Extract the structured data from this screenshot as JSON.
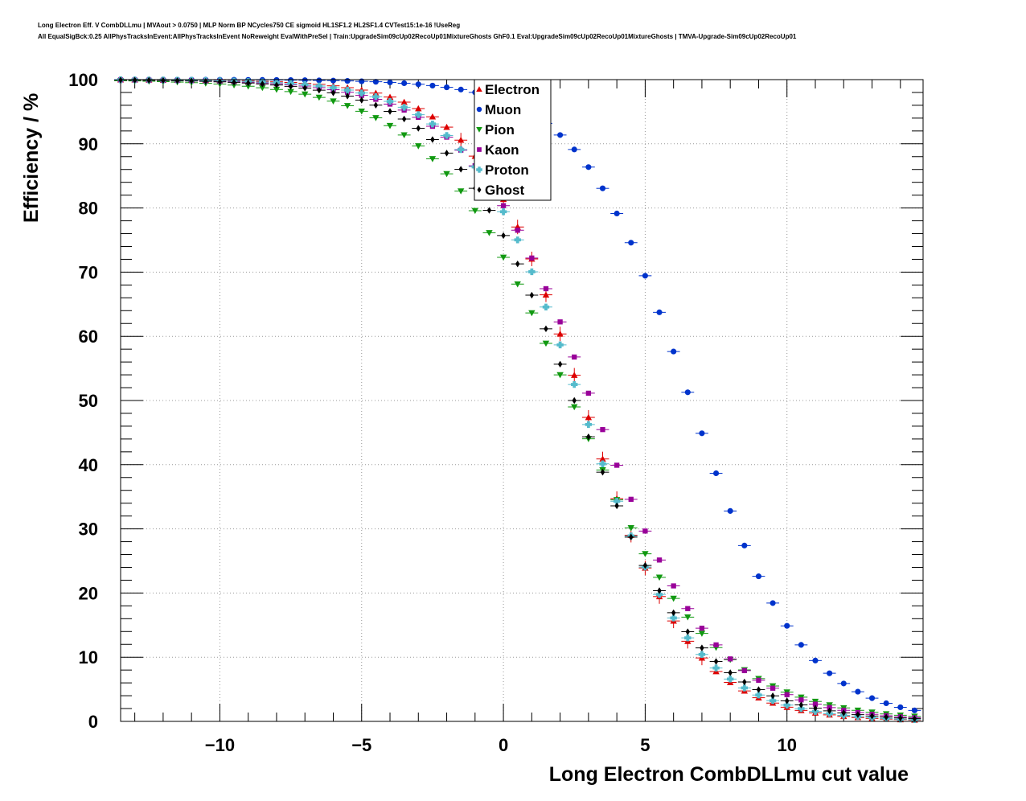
{
  "chart_data": {
    "type": "scatter",
    "title": "Long Electron Eff. V CombDLLmu | MVAout > 0.0750 | MLP Norm BP NCycles750 CE sigmoid HL1SF1.2 HL2SF1.4 CVTest15:1e-16 !UseReg",
    "subtitle": "All EqualSigBck:0.25 AllPhysTracksInEvent:AllPhysTracksInEvent NoReweight EvalWithPreSel | Train:UpgradeSim09cUp02RecoUp01MixtureGhosts GhF0.1 Eval:UpgradeSim09cUp02RecoUp01MixtureGhosts | TMVA-Upgrade-Sim09cUp02RecoUp01",
    "xlabel": "Long Electron CombDLLmu cut value",
    "ylabel": "Efficiency / %",
    "xlim": [
      -13.5,
      14.8
    ],
    "ylim": [
      0,
      100
    ],
    "x_ticks": [
      -10,
      -5,
      0,
      5,
      10
    ],
    "x_tick_labels": [
      "−10",
      "−5",
      "0",
      "5",
      "10"
    ],
    "y_ticks": [
      0,
      10,
      20,
      30,
      40,
      50,
      60,
      70,
      80,
      90,
      100
    ],
    "y_tick_labels": [
      "0",
      "10",
      "20",
      "30",
      "40",
      "50",
      "60",
      "70",
      "80",
      "90",
      "100"
    ],
    "grid": true,
    "legend_position": "top-center",
    "x_range": {
      "start": -13.5,
      "step": 0.5,
      "count": 57
    },
    "series": [
      {
        "name": "Electron",
        "color": "#dd0000",
        "marker": "triangle-up",
        "mid": 2.8,
        "width": 1.9
      },
      {
        "name": "Muon",
        "color": "#0033cc",
        "marker": "circle",
        "mid": 6.6,
        "width": 1.95
      },
      {
        "name": "Pion",
        "color": "#119911",
        "marker": "triangle-down",
        "mid": 2.4,
        "width": 2.5
      },
      {
        "name": "Kaon",
        "color": "#990099",
        "marker": "square",
        "mid": 3.1,
        "width": 2.2
      },
      {
        "name": "Proton",
        "color": "#55bbcc",
        "marker": "cross",
        "mid": 2.7,
        "width": 2.0
      },
      {
        "name": "Ghost",
        "color": "#000000",
        "marker": "diamond",
        "mid": 2.5,
        "width": 2.2
      }
    ]
  }
}
